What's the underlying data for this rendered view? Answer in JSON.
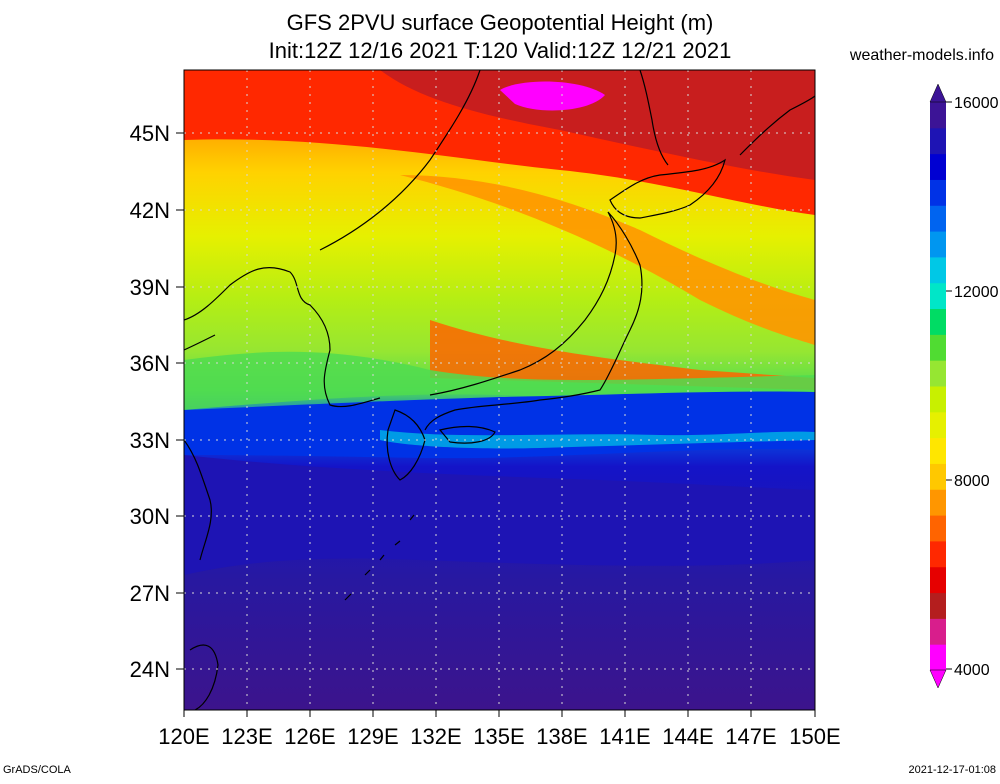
{
  "title": {
    "line1": "GFS 2PVU surface Geopotential Height (m)",
    "line2": "Init:12Z 12/16 2021 T:120 Valid:12Z 12/21 2021"
  },
  "source": "weather-models.info",
  "footer": {
    "left": "GrADS/COLA",
    "right": "2021-12-17-01:08"
  },
  "lat_labels": [
    "45N",
    "42N",
    "39N",
    "36N",
    "33N",
    "30N",
    "27N",
    "24N"
  ],
  "lon_labels": [
    "120E",
    "123E",
    "126E",
    "129E",
    "132E",
    "135E",
    "138E",
    "141E",
    "144E",
    "147E",
    "150E"
  ],
  "colorbar": {
    "labels": [
      "16000",
      "12000",
      "8000",
      "4000"
    ],
    "colors": [
      "#ff00ff",
      "#d81e8c",
      "#b41e1e",
      "#e60000",
      "#ff2800",
      "#ff6400",
      "#ff9600",
      "#ffc800",
      "#ffe600",
      "#e6f000",
      "#c8f000",
      "#96e632",
      "#50dc32",
      "#00dc64",
      "#00e6c8",
      "#00c8e6",
      "#0096f0",
      "#0064f0",
      "#0032e6",
      "#0000d2",
      "#1e14b4",
      "#3c1496"
    ]
  }
}
